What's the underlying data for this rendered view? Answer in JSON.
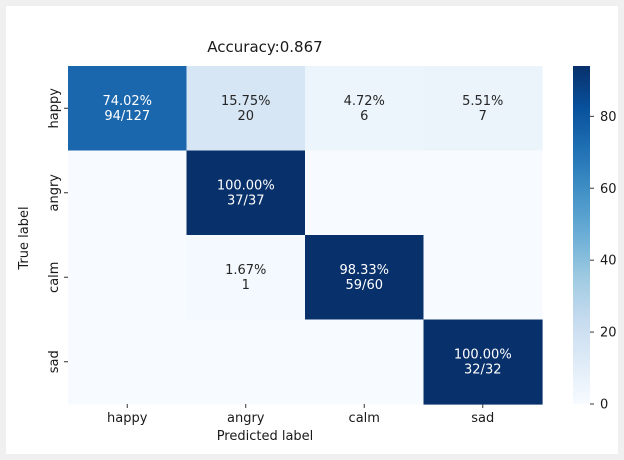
{
  "chart_data": {
    "type": "heatmap",
    "title": "Accuracy:0.867",
    "xlabel": "Predicted label",
    "ylabel": "True label",
    "x_categories": [
      "happy",
      "angry",
      "calm",
      "sad"
    ],
    "y_categories": [
      "happy",
      "angry",
      "calm",
      "sad"
    ],
    "percent_matrix": [
      [
        74.02,
        15.75,
        4.72,
        5.51
      ],
      [
        0,
        100.0,
        0,
        0
      ],
      [
        0,
        1.67,
        98.33,
        0
      ],
      [
        0,
        0,
        0,
        100.0
      ]
    ],
    "cell_labels": [
      [
        "74.02%\n94/127",
        "15.75%\n20",
        "4.72%\n6",
        "5.51%\n7"
      ],
      [
        "",
        "100.00%\n37/37",
        "",
        ""
      ],
      [
        "",
        "1.67%\n1",
        "98.33%\n59/60",
        ""
      ],
      [
        "",
        "",
        "",
        "100.00%\n32/32"
      ]
    ],
    "colorbar": {
      "range": [
        0,
        94
      ],
      "ticks": [
        0,
        20,
        40,
        60,
        80
      ]
    },
    "colormap": "Blues"
  }
}
